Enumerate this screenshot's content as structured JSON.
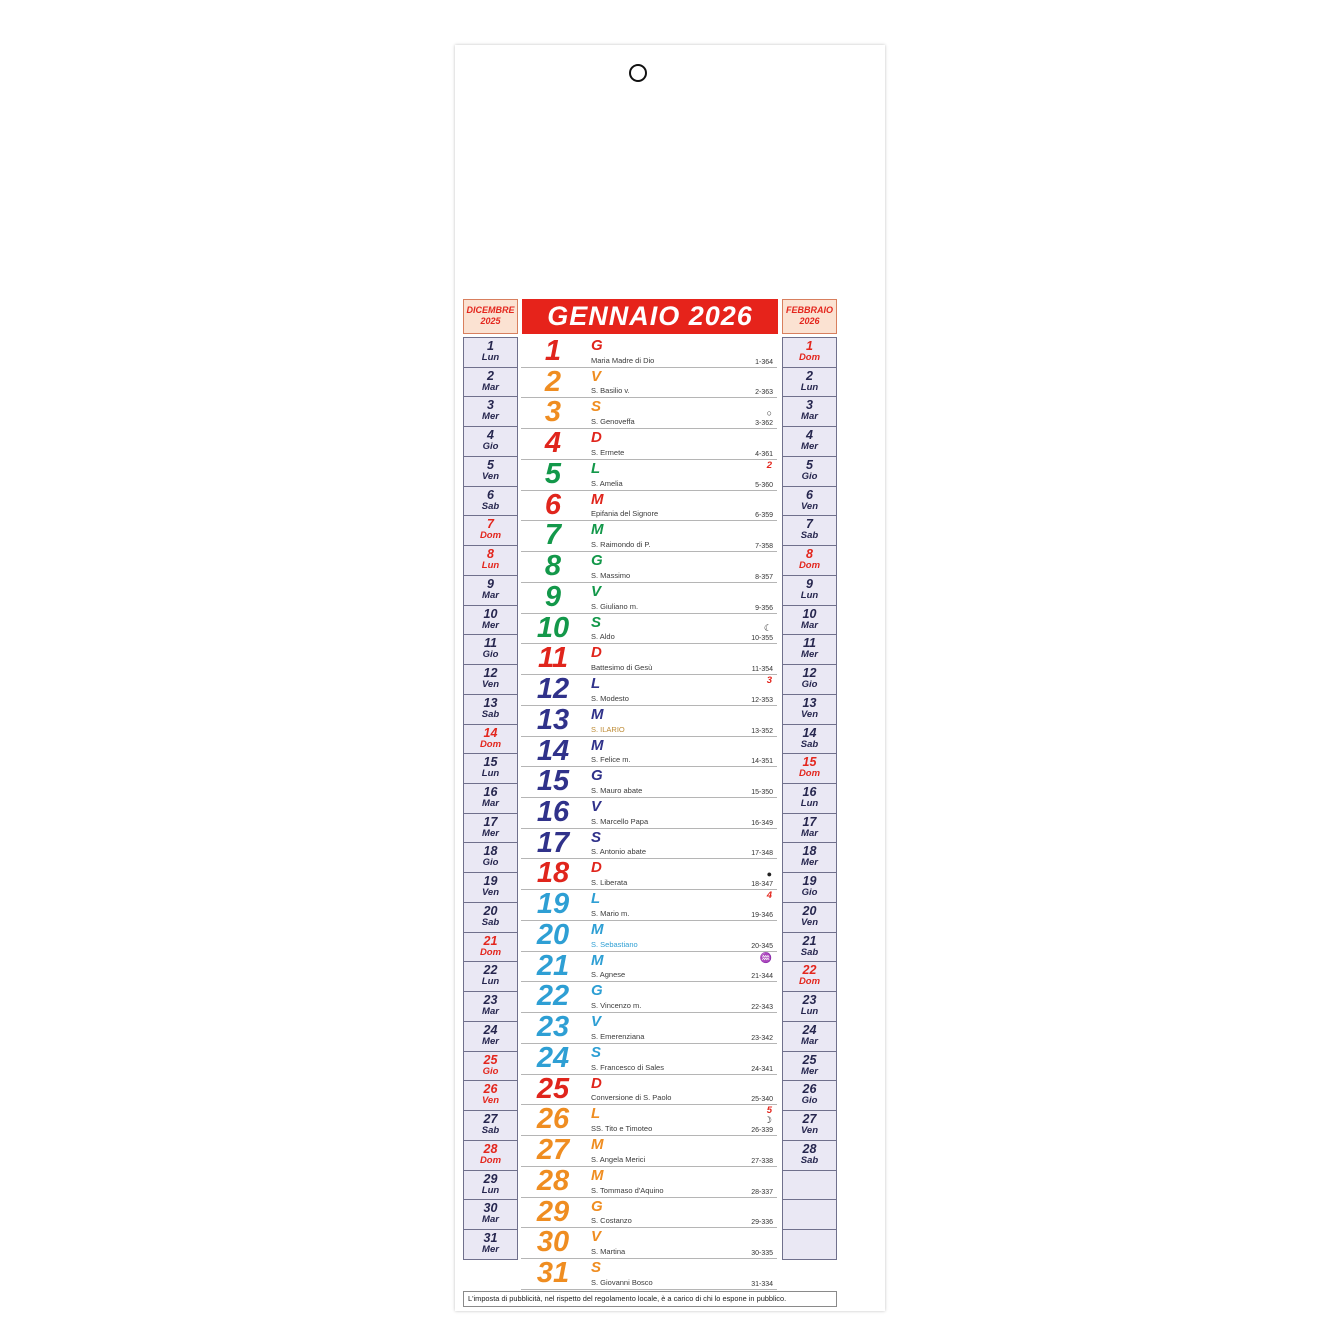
{
  "page": {
    "footer": "L'imposta di pubblicità, nel rispetto del regolamento locale, è a carico di chi lo espone in pubblico."
  },
  "header": {
    "prev_month": {
      "line1": "DICEMBRE",
      "line2": "2025"
    },
    "title": "GENNAIO 2026",
    "next_month": {
      "line1": "FEBBRAIO",
      "line2": "2026"
    }
  },
  "colors": {
    "red": "#e0251c",
    "orange": "#ef8d21",
    "green": "#13984a",
    "navy": "#30328a",
    "blue": "#2e9fd4",
    "banner_red": "#e6231b",
    "saint_default": "#3a3a3a",
    "saint_gold": "#bd8a33",
    "saint_blue": "#2e9fd4",
    "week_red": "#e3261d"
  },
  "month": {
    "days": [
      {
        "n": "1",
        "letter": "G",
        "saint": "Maria Madre di Dio",
        "counter": "1-364",
        "color": "red"
      },
      {
        "n": "2",
        "letter": "V",
        "saint": "S. Basilio v.",
        "counter": "2-363",
        "color": "orange"
      },
      {
        "n": "3",
        "letter": "S",
        "saint": "S. Genoveffa",
        "counter": "3-362",
        "color": "orange",
        "moon": "○",
        "moon_name": "full-moon-icon"
      },
      {
        "n": "4",
        "letter": "D",
        "saint": "S. Ermete",
        "counter": "4-361",
        "color": "red"
      },
      {
        "n": "5",
        "letter": "L",
        "saint": "S. Amelia",
        "counter": "5-360",
        "color": "green",
        "week": "2"
      },
      {
        "n": "6",
        "letter": "M",
        "saint": "Epifania del Signore",
        "counter": "6-359",
        "color": "red"
      },
      {
        "n": "7",
        "letter": "M",
        "saint": "S. Raimondo di P.",
        "counter": "7-358",
        "color": "green"
      },
      {
        "n": "8",
        "letter": "G",
        "saint": "S. Massimo",
        "counter": "8-357",
        "color": "green"
      },
      {
        "n": "9",
        "letter": "V",
        "saint": "S. Giuliano m.",
        "counter": "9-356",
        "color": "green"
      },
      {
        "n": "10",
        "letter": "S",
        "saint": "S. Aldo",
        "counter": "10-355",
        "color": "green",
        "moon": "☾",
        "moon_name": "last-quarter-moon-icon"
      },
      {
        "n": "11",
        "letter": "D",
        "saint": "Battesimo di Gesù",
        "counter": "11-354",
        "color": "red"
      },
      {
        "n": "12",
        "letter": "L",
        "saint": "S. Modesto",
        "counter": "12-353",
        "color": "navy",
        "week": "3"
      },
      {
        "n": "13",
        "letter": "M",
        "saint": "S. ILARIO",
        "counter": "13-352",
        "color": "navy",
        "saint_color": "saint_gold"
      },
      {
        "n": "14",
        "letter": "M",
        "saint": "S. Felice m.",
        "counter": "14-351",
        "color": "navy"
      },
      {
        "n": "15",
        "letter": "G",
        "saint": "S. Mauro abate",
        "counter": "15-350",
        "color": "navy"
      },
      {
        "n": "16",
        "letter": "V",
        "saint": "S. Marcello Papa",
        "counter": "16-349",
        "color": "navy"
      },
      {
        "n": "17",
        "letter": "S",
        "saint": "S. Antonio abate",
        "counter": "17-348",
        "color": "navy"
      },
      {
        "n": "18",
        "letter": "D",
        "saint": "S. Liberata",
        "counter": "18-347",
        "color": "red",
        "moon": "●",
        "moon_name": "new-moon-icon"
      },
      {
        "n": "19",
        "letter": "L",
        "saint": "S. Mario m.",
        "counter": "19-346",
        "color": "blue",
        "week": "4"
      },
      {
        "n": "20",
        "letter": "M",
        "saint": "S. Sebastiano",
        "counter": "20-345",
        "color": "blue",
        "saint_color": "saint_blue"
      },
      {
        "n": "21",
        "letter": "M",
        "saint": "S. Agnese",
        "counter": "21-344",
        "color": "blue",
        "badge": "♒",
        "badge_name": "aquarius-zodiac-icon"
      },
      {
        "n": "22",
        "letter": "G",
        "saint": "S. Vincenzo m.",
        "counter": "22-343",
        "color": "blue"
      },
      {
        "n": "23",
        "letter": "V",
        "saint": "S. Emerenziana",
        "counter": "23-342",
        "color": "blue"
      },
      {
        "n": "24",
        "letter": "S",
        "saint": "S. Francesco di Sales",
        "counter": "24-341",
        "color": "blue"
      },
      {
        "n": "25",
        "letter": "D",
        "saint": "Conversione di S. Paolo",
        "counter": "25-340",
        "color": "red"
      },
      {
        "n": "26",
        "letter": "L",
        "saint": "SS. Tito e Timoteo",
        "counter": "26-339",
        "color": "orange",
        "week": "5",
        "moon": "☽",
        "moon_name": "first-quarter-moon-icon"
      },
      {
        "n": "27",
        "letter": "M",
        "saint": "S. Angela Merici",
        "counter": "27-338",
        "color": "orange"
      },
      {
        "n": "28",
        "letter": "M",
        "saint": "S. Tommaso d'Aquino",
        "counter": "28-337",
        "color": "orange"
      },
      {
        "n": "29",
        "letter": "G",
        "saint": "S. Costanzo",
        "counter": "29-336",
        "color": "orange"
      },
      {
        "n": "30",
        "letter": "V",
        "saint": "S. Martina",
        "counter": "30-335",
        "color": "orange"
      },
      {
        "n": "31",
        "letter": "S",
        "saint": "S. Giovanni Bosco",
        "counter": "31-334",
        "color": "orange"
      }
    ]
  },
  "sidebar_left": {
    "days": [
      {
        "n": "1",
        "dow": "Lun"
      },
      {
        "n": "2",
        "dow": "Mar"
      },
      {
        "n": "3",
        "dow": "Mer"
      },
      {
        "n": "4",
        "dow": "Gio"
      },
      {
        "n": "5",
        "dow": "Ven"
      },
      {
        "n": "6",
        "dow": "Sab"
      },
      {
        "n": "7",
        "dow": "Dom",
        "red": true
      },
      {
        "n": "8",
        "dow": "Lun",
        "red": true
      },
      {
        "n": "9",
        "dow": "Mar"
      },
      {
        "n": "10",
        "dow": "Mer"
      },
      {
        "n": "11",
        "dow": "Gio"
      },
      {
        "n": "12",
        "dow": "Ven"
      },
      {
        "n": "13",
        "dow": "Sab"
      },
      {
        "n": "14",
        "dow": "Dom",
        "red": true
      },
      {
        "n": "15",
        "dow": "Lun"
      },
      {
        "n": "16",
        "dow": "Mar"
      },
      {
        "n": "17",
        "dow": "Mer"
      },
      {
        "n": "18",
        "dow": "Gio"
      },
      {
        "n": "19",
        "dow": "Ven"
      },
      {
        "n": "20",
        "dow": "Sab"
      },
      {
        "n": "21",
        "dow": "Dom",
        "red": true
      },
      {
        "n": "22",
        "dow": "Lun"
      },
      {
        "n": "23",
        "dow": "Mar"
      },
      {
        "n": "24",
        "dow": "Mer"
      },
      {
        "n": "25",
        "dow": "Gio",
        "red": true
      },
      {
        "n": "26",
        "dow": "Ven",
        "red": true
      },
      {
        "n": "27",
        "dow": "Sab"
      },
      {
        "n": "28",
        "dow": "Dom",
        "red": true
      },
      {
        "n": "29",
        "dow": "Lun"
      },
      {
        "n": "30",
        "dow": "Mar"
      },
      {
        "n": "31",
        "dow": "Mer"
      }
    ]
  },
  "sidebar_right": {
    "days": [
      {
        "n": "1",
        "dow": "Dom",
        "red": true
      },
      {
        "n": "2",
        "dow": "Lun"
      },
      {
        "n": "3",
        "dow": "Mar"
      },
      {
        "n": "4",
        "dow": "Mer"
      },
      {
        "n": "5",
        "dow": "Gio"
      },
      {
        "n": "6",
        "dow": "Ven"
      },
      {
        "n": "7",
        "dow": "Sab"
      },
      {
        "n": "8",
        "dow": "Dom",
        "red": true
      },
      {
        "n": "9",
        "dow": "Lun"
      },
      {
        "n": "10",
        "dow": "Mar"
      },
      {
        "n": "11",
        "dow": "Mer"
      },
      {
        "n": "12",
        "dow": "Gio"
      },
      {
        "n": "13",
        "dow": "Ven"
      },
      {
        "n": "14",
        "dow": "Sab"
      },
      {
        "n": "15",
        "dow": "Dom",
        "red": true
      },
      {
        "n": "16",
        "dow": "Lun"
      },
      {
        "n": "17",
        "dow": "Mar"
      },
      {
        "n": "18",
        "dow": "Mer"
      },
      {
        "n": "19",
        "dow": "Gio"
      },
      {
        "n": "20",
        "dow": "Ven"
      },
      {
        "n": "21",
        "dow": "Sab"
      },
      {
        "n": "22",
        "dow": "Dom",
        "red": true
      },
      {
        "n": "23",
        "dow": "Lun"
      },
      {
        "n": "24",
        "dow": "Mar"
      },
      {
        "n": "25",
        "dow": "Mer"
      },
      {
        "n": "26",
        "dow": "Gio"
      },
      {
        "n": "27",
        "dow": "Ven"
      },
      {
        "n": "28",
        "dow": "Sab"
      }
    ],
    "empty_cells": 3
  }
}
